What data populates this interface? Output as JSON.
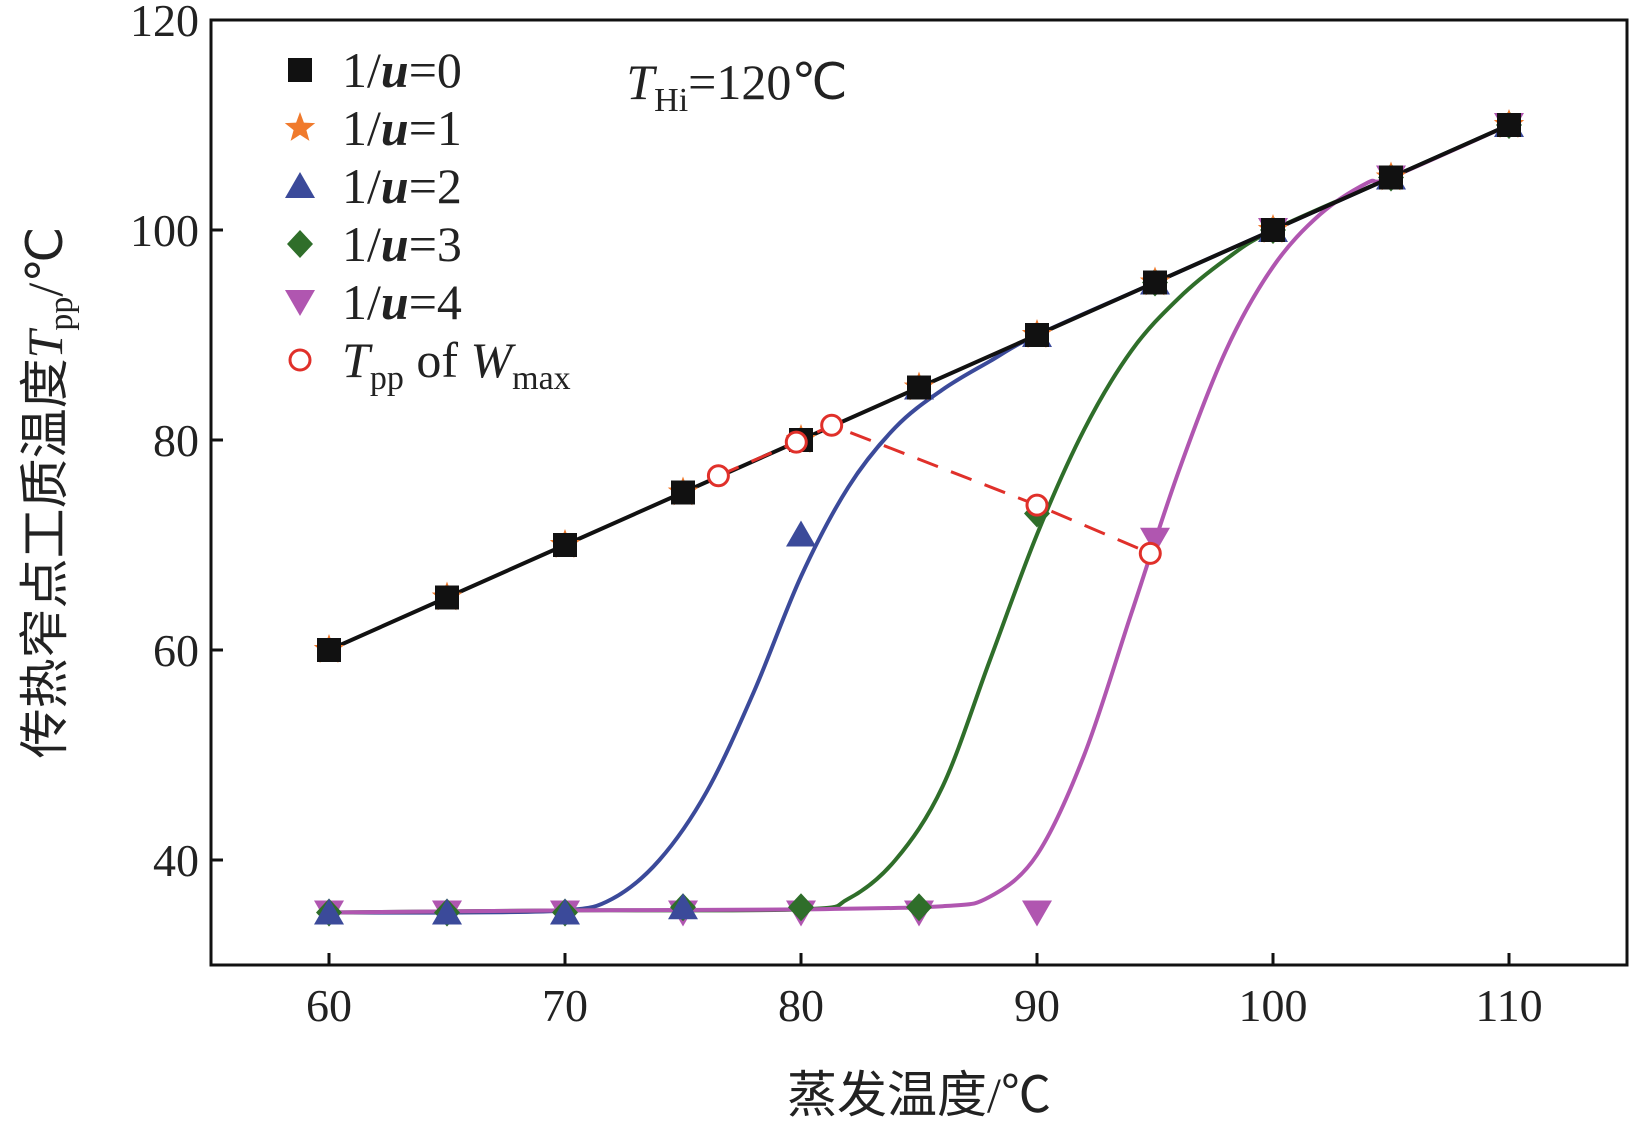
{
  "chart_data": {
    "type": "line",
    "title": "",
    "xlabel": "蒸发温度/℃",
    "ylabel": {
      "prefix": "传热窄点工质温度",
      "sym": "T",
      "sub": "pp",
      "unit": "/℃"
    },
    "xlim": [
      55,
      115
    ],
    "ylim": [
      30,
      120
    ],
    "xticks": [
      "60",
      "70",
      "80",
      "90",
      "100",
      "110"
    ],
    "yticks": [
      "40",
      "60",
      "80",
      "100",
      "120"
    ],
    "grid": false,
    "legend_position": "top-left",
    "annotation": {
      "sym": "T",
      "sub": "Hi",
      "rest": "=120℃"
    },
    "colors": {
      "axis": "#111111",
      "s0": "#111111",
      "s1": "#f07a2c",
      "s2": "#3b4a9a",
      "s3": "#2f6e2a",
      "s4": "#b056b0",
      "wmax": "#e0302a"
    },
    "series": [
      {
        "name": "1/u=0",
        "label": {
          "pre": "1/",
          "sym": "u",
          "post": "=0"
        },
        "marker": "square",
        "x": [
          60,
          65,
          70,
          75,
          80,
          85,
          90,
          95,
          100,
          105,
          110
        ],
        "y": [
          60,
          65,
          70,
          75,
          80,
          85,
          90,
          95,
          100,
          105,
          110
        ]
      },
      {
        "name": "1/u=1",
        "label": {
          "pre": "1/",
          "sym": "u",
          "post": "=1"
        },
        "marker": "star",
        "x": [
          60,
          65,
          70,
          75,
          80,
          85,
          90,
          95,
          100,
          105,
          110
        ],
        "y": [
          60,
          65,
          70,
          75,
          80,
          85,
          90,
          95,
          100,
          105,
          110
        ]
      },
      {
        "name": "1/u=2",
        "label": {
          "pre": "1/",
          "sym": "u",
          "post": "=2"
        },
        "marker": "triangle-up",
        "x": [
          60,
          65,
          70,
          75,
          80,
          85,
          90,
          95,
          100,
          105,
          110
        ],
        "y": [
          35,
          35,
          35,
          35.5,
          71,
          85,
          90,
          95,
          100,
          105,
          110
        ]
      },
      {
        "name": "1/u=3",
        "label": {
          "pre": "1/",
          "sym": "u",
          "post": "=3"
        },
        "marker": "diamond",
        "x": [
          60,
          65,
          70,
          75,
          80,
          85,
          90,
          95,
          100,
          105,
          110
        ],
        "y": [
          35,
          35,
          35,
          35.5,
          35.5,
          35.5,
          73,
          95,
          100,
          105,
          110
        ]
      },
      {
        "name": "1/u=4",
        "label": {
          "pre": "1/",
          "sym": "u",
          "post": "=4"
        },
        "marker": "triangle-down",
        "x": [
          60,
          65,
          70,
          75,
          80,
          85,
          90,
          95,
          100,
          105,
          110
        ],
        "y": [
          35,
          35,
          35,
          35,
          35,
          35,
          35,
          70.5,
          100,
          105,
          110
        ]
      },
      {
        "name": "Tpp of Wmax",
        "label": {
          "sym": "T",
          "sub": "pp",
          "mid": " of ",
          "sym2": "W",
          "sub2": "max"
        },
        "marker": "circle-open",
        "x": [
          76.5,
          79.8,
          81.3,
          90,
          94.8
        ],
        "y": [
          76.6,
          79.8,
          81.4,
          73.8,
          69.2
        ]
      }
    ],
    "fit_curves": [
      {
        "series": "1/u=2",
        "x": [
          60,
          65,
          70,
          72,
          74,
          76,
          78,
          80,
          82,
          84,
          86,
          88,
          90,
          95,
          100,
          105,
          110
        ],
        "y": [
          35,
          35,
          35.2,
          36.3,
          40,
          46.5,
          56,
          67,
          75.5,
          81.2,
          84.8,
          87.5,
          90,
          95,
          100,
          105,
          110
        ]
      },
      {
        "series": "1/u=3",
        "x": [
          60,
          70,
          80,
          82,
          84,
          86,
          88,
          90,
          92,
          94,
          96,
          98,
          100,
          105,
          110
        ],
        "y": [
          35,
          35.2,
          35.3,
          36.3,
          40,
          47,
          59,
          71,
          81,
          88.5,
          93.5,
          97.2,
          100,
          105,
          110
        ]
      },
      {
        "series": "1/u=4",
        "x": [
          60,
          70,
          80,
          86,
          88,
          90,
          92,
          94,
          96,
          98,
          100,
          102,
          104,
          105,
          110
        ],
        "y": [
          35,
          35.2,
          35.3,
          35.6,
          36.5,
          40.5,
          50,
          63.5,
          77,
          88.5,
          96.5,
          101.5,
          104.5,
          105,
          110
        ]
      }
    ]
  }
}
